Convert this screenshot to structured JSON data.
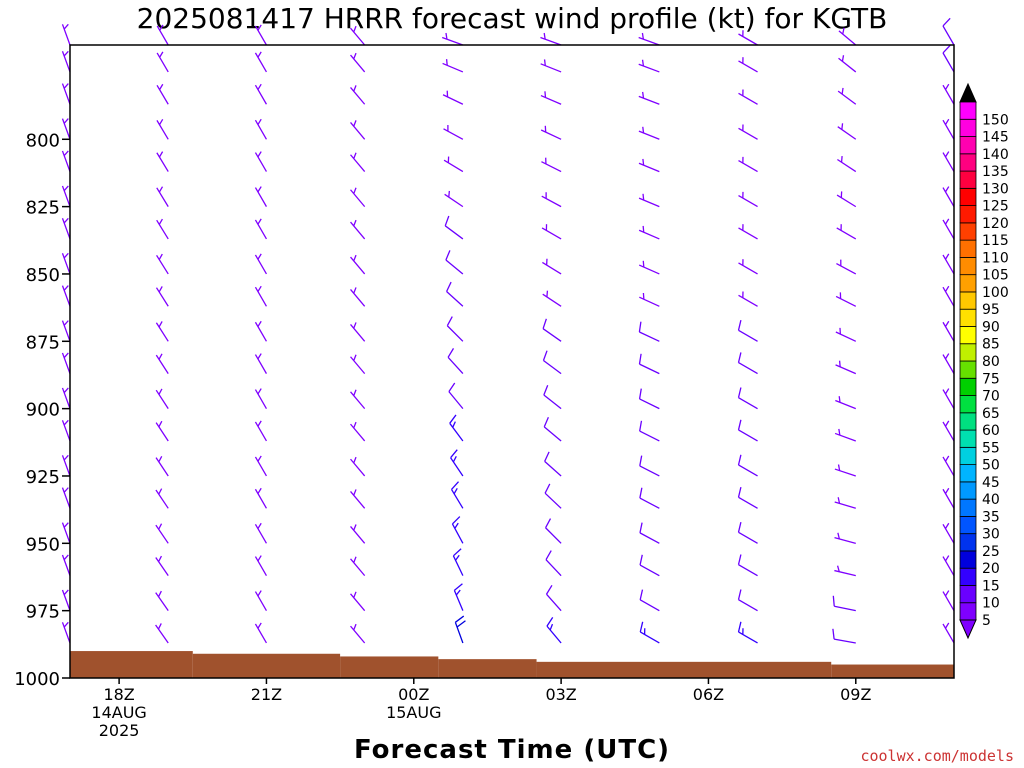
{
  "chart_data": {
    "type": "wind_barb_profile",
    "title": "2025081417 HRRR forecast wind profile (kt) for KGTB",
    "xlabel": "Forecast Time (UTC)",
    "ylabel": "",
    "credit": "coolwx.com/models",
    "y_axis": {
      "inverted": true,
      "range": [
        1000,
        765
      ],
      "ticks": [
        800,
        825,
        850,
        875,
        900,
        925,
        950,
        975,
        1000
      ]
    },
    "x_axis": {
      "range_hours": [
        -1.0,
        17.0
      ],
      "ticks": [
        {
          "hour": 0,
          "lines": [
            "18Z",
            "14AUG",
            "2025"
          ]
        },
        {
          "hour": 3,
          "lines": [
            "21Z"
          ]
        },
        {
          "hour": 6,
          "lines": [
            "00Z",
            "15AUG"
          ]
        },
        {
          "hour": 9,
          "lines": [
            "03Z"
          ]
        },
        {
          "hour": 12,
          "lines": [
            "06Z"
          ]
        },
        {
          "hour": 15,
          "lines": [
            "09Z"
          ]
        }
      ]
    },
    "barb_pressure_levels": [
      765,
      775,
      787,
      800,
      812,
      825,
      837,
      850,
      862,
      875,
      887,
      900,
      912,
      925,
      937,
      950,
      962,
      975,
      987
    ],
    "wind_columns": [
      {
        "hour": -1.0,
        "top_dir": 340,
        "bottom_dir": 340,
        "top_speed": 5,
        "bottom_speed": 5
      },
      {
        "hour": 1.0,
        "top_dir": 330,
        "bottom_dir": 325,
        "top_speed": 5,
        "bottom_speed": 5
      },
      {
        "hour": 3.0,
        "top_dir": 330,
        "bottom_dir": 330,
        "top_speed": 5,
        "bottom_speed": 5
      },
      {
        "hour": 5.0,
        "top_dir": 320,
        "bottom_dir": 320,
        "top_speed": 5,
        "bottom_speed": 5
      },
      {
        "hour": 7.0,
        "top_dir": 290,
        "bottom_dir": 340,
        "top_speed": 5,
        "bottom_speed": 20
      },
      {
        "hour": 9.0,
        "top_dir": 290,
        "bottom_dir": 320,
        "top_speed": 5,
        "bottom_speed": 15
      },
      {
        "hour": 11.0,
        "top_dir": 290,
        "bottom_dir": 300,
        "top_speed": 5,
        "bottom_speed": 15
      },
      {
        "hour": 13.0,
        "top_dir": 300,
        "bottom_dir": 300,
        "top_speed": 5,
        "bottom_speed": 15
      },
      {
        "hour": 15.0,
        "top_dir": 310,
        "bottom_dir": 280,
        "top_speed": 5,
        "bottom_speed": 10
      },
      {
        "hour": 17.0,
        "top_dir": 330,
        "bottom_dir": 330,
        "top_speed": 10,
        "bottom_speed": 5
      }
    ],
    "terrain": {
      "color": "#a0522d",
      "steps": [
        {
          "h0": -1.0,
          "h1": 1.5,
          "p": 990
        },
        {
          "h0": 1.5,
          "h1": 4.5,
          "p": 991
        },
        {
          "h0": 4.5,
          "h1": 6.5,
          "p": 992
        },
        {
          "h0": 6.5,
          "h1": 8.5,
          "p": 993
        },
        {
          "h0": 8.5,
          "h1": 14.5,
          "p": 994
        },
        {
          "h0": 14.5,
          "h1": 17.0,
          "p": 995
        }
      ]
    },
    "colorbar": {
      "levels": [
        5,
        10,
        15,
        20,
        25,
        30,
        35,
        40,
        45,
        50,
        55,
        60,
        65,
        70,
        75,
        80,
        85,
        90,
        95,
        100,
        105,
        110,
        115,
        120,
        125,
        130,
        135,
        140,
        145,
        150
      ],
      "colors": [
        "#7f00ff",
        "#6a00ff",
        "#3300ff",
        "#0000dd",
        "#0033ee",
        "#0055ff",
        "#0077ff",
        "#0099ff",
        "#00b4ff",
        "#00d0e0",
        "#00e0b0",
        "#00e080",
        "#00e040",
        "#00d000",
        "#66e000",
        "#c0f000",
        "#ffff00",
        "#ffe000",
        "#ffc800",
        "#ffa000",
        "#ff8c00",
        "#ff7000",
        "#ff4000",
        "#ff1a00",
        "#ff0000",
        "#ff0040",
        "#ff0080",
        "#ff00b0",
        "#ff00e0",
        "#ff00ff",
        "#000000"
      ]
    }
  }
}
